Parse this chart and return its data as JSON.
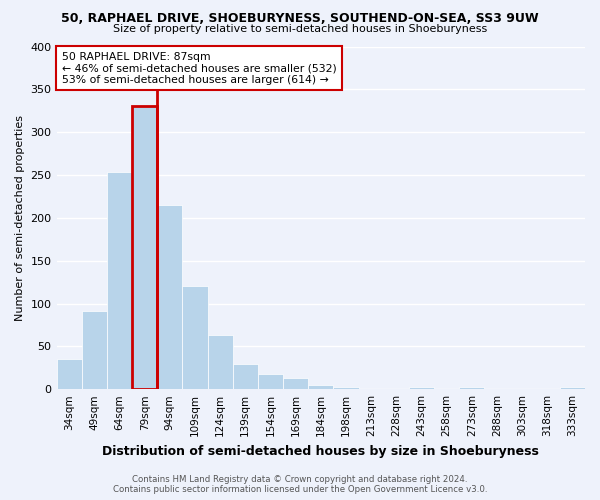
{
  "title": "50, RAPHAEL DRIVE, SHOEBURYNESS, SOUTHEND-ON-SEA, SS3 9UW",
  "subtitle": "Size of property relative to semi-detached houses in Shoeburyness",
  "xlabel": "Distribution of semi-detached houses by size in Shoeburyness",
  "ylabel": "Number of semi-detached properties",
  "categories": [
    "34sqm",
    "49sqm",
    "64sqm",
    "79sqm",
    "94sqm",
    "109sqm",
    "124sqm",
    "139sqm",
    "154sqm",
    "169sqm",
    "184sqm",
    "198sqm",
    "213sqm",
    "228sqm",
    "243sqm",
    "258sqm",
    "273sqm",
    "288sqm",
    "303sqm",
    "318sqm",
    "333sqm"
  ],
  "values": [
    35,
    91,
    253,
    330,
    215,
    121,
    63,
    29,
    18,
    13,
    5,
    3,
    0,
    0,
    2,
    0,
    2,
    0,
    0,
    0,
    3
  ],
  "bar_color": "#b8d4ea",
  "highlight_bar_index": 3,
  "highlight_bar_color": "#cc0000",
  "property_label": "50 RAPHAEL DRIVE: 87sqm",
  "pct_smaller": 46,
  "count_smaller": 532,
  "pct_larger": 53,
  "count_larger": 614,
  "ylim": [
    0,
    400
  ],
  "yticks": [
    0,
    50,
    100,
    150,
    200,
    250,
    300,
    350,
    400
  ],
  "footer_line1": "Contains HM Land Registry data © Crown copyright and database right 2024.",
  "footer_line2": "Contains public sector information licensed under the Open Government Licence v3.0.",
  "bg_color": "#eef2fb",
  "grid_color": "#ffffff"
}
